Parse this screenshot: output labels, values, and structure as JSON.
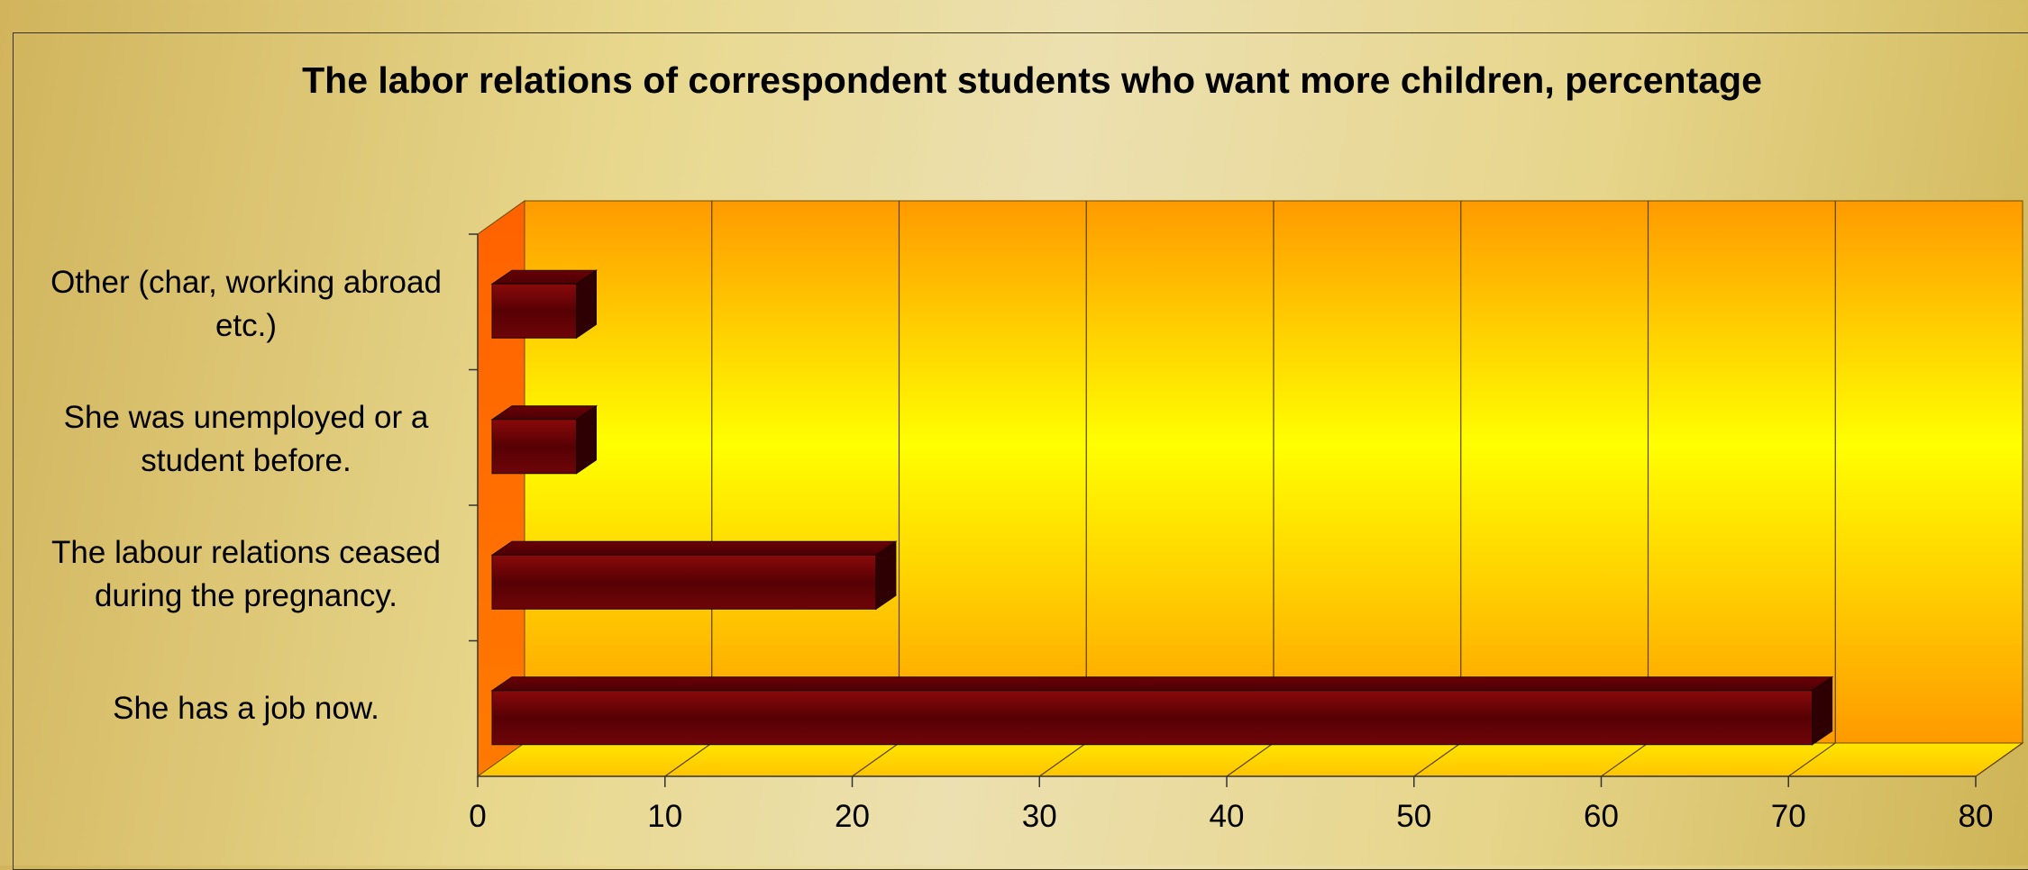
{
  "chart_data": {
    "type": "bar",
    "orientation": "horizontal",
    "title": "The labor relations of correspondent students who want more children, percentage",
    "xlabel": "",
    "ylabel": "",
    "categories": [
      "Other (char, working abroad etc.)",
      "She was unemployed or a student before.",
      "The labour relations ceased during the pregnancy.",
      "She has a job now."
    ],
    "values": [
      4.5,
      4.5,
      20.5,
      70.5
    ],
    "xlim": [
      0,
      80
    ],
    "x_ticks": [
      "0",
      "10",
      "20",
      "30",
      "40",
      "50",
      "60",
      "70",
      "80"
    ],
    "grid": "vertical",
    "legend": "none",
    "style": "3d",
    "colors": {
      "bar": "#7a0008",
      "bar_dark": "#3e0004",
      "back_wall_top": "#ff9800",
      "back_wall_mid": "#ffff00",
      "side_wall": "#ff6a00",
      "floor": "#ffe000"
    }
  }
}
